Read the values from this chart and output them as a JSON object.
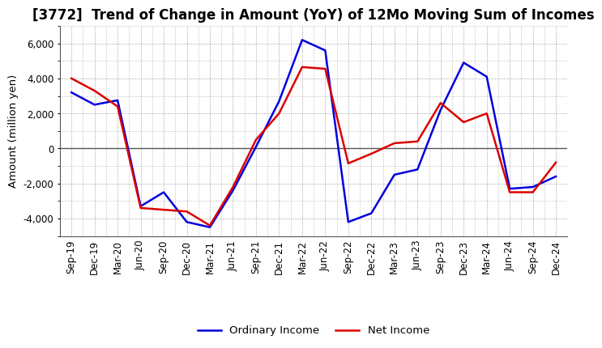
{
  "title": "[3772]  Trend of Change in Amount (YoY) of 12Mo Moving Sum of Incomes",
  "ylabel": "Amount (million yen)",
  "background_color": "#ffffff",
  "plot_bg_color": "#ffffff",
  "grid_color": "#888888",
  "zero_line_color": "#555555",
  "x_labels": [
    "Sep-19",
    "Dec-19",
    "Mar-20",
    "Jun-20",
    "Sep-20",
    "Dec-20",
    "Mar-21",
    "Jun-21",
    "Sep-21",
    "Dec-21",
    "Mar-22",
    "Jun-22",
    "Sep-22",
    "Dec-22",
    "Mar-23",
    "Jun-23",
    "Sep-23",
    "Dec-23",
    "Mar-24",
    "Jun-24",
    "Sep-24",
    "Dec-24"
  ],
  "ordinary_income": [
    3200,
    2500,
    2750,
    -3300,
    -2500,
    -4200,
    -4500,
    -2400,
    100,
    2700,
    6200,
    5600,
    -4200,
    -3700,
    -1500,
    -1200,
    2200,
    4900,
    4100,
    -2300,
    -2200,
    -1600
  ],
  "net_income": [
    4000,
    3300,
    2400,
    -3400,
    -3500,
    -3600,
    -4400,
    -2200,
    500,
    2000,
    4650,
    4550,
    -850,
    -300,
    300,
    400,
    2600,
    1500,
    2000,
    -2500,
    -2500,
    -800
  ],
  "ordinary_color": "#0000dd",
  "net_color": "#dd0000",
  "line_width": 1.8,
  "ylim": [
    -5000,
    7000
  ],
  "yticks": [
    -4000,
    -2000,
    0,
    2000,
    4000,
    6000
  ],
  "title_fontsize": 12,
  "label_fontsize": 9.5,
  "tick_fontsize": 8.5,
  "legend_labels": [
    "Ordinary Income",
    "Net Income"
  ]
}
